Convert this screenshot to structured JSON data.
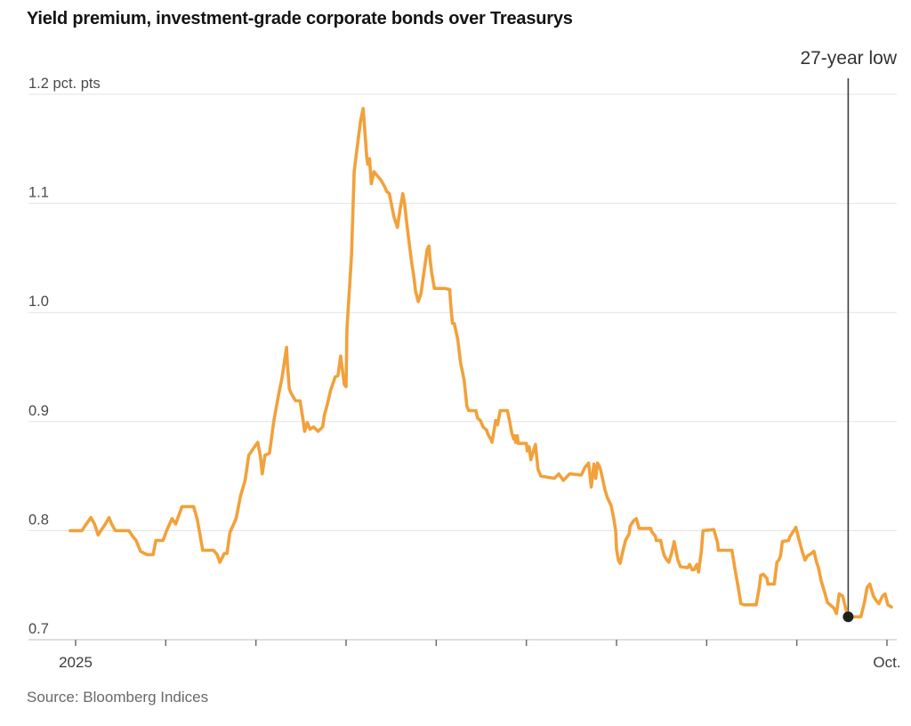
{
  "chart_data": {
    "type": "line",
    "title": "Yield premium, investment-grade corporate bonds over Treasurys",
    "source": "Source: Bloomberg Indices",
    "unit_label": "pct. pts",
    "grid": "horizontal",
    "legend": "none",
    "ylim": [
      0.7,
      1.235
    ],
    "y_ticks": [
      0.7,
      0.8,
      0.9,
      1.0,
      1.1,
      1.2
    ],
    "y_tick_labels": [
      "0.7",
      "0.8",
      "0.9",
      "1.0",
      "1.1",
      "1.2 pct. pts"
    ],
    "x_unit": "months since Jan 2025",
    "x_ticks": [
      0,
      1,
      2,
      3,
      4,
      5,
      6,
      7,
      8,
      9
    ],
    "x_tick_labels": [
      "2025",
      "",
      "",
      "",
      "",
      "",
      "",
      "",
      "",
      "Oct."
    ],
    "annotation": {
      "label": "27-year low",
      "x": 8.57,
      "value": 0.721
    },
    "series": [
      {
        "name": "Yield premium, pct. pts",
        "color": "#F2A13B",
        "x": [
          -0.06,
          0.07,
          0.11,
          0.17,
          0.21,
          0.25,
          0.28,
          0.33,
          0.37,
          0.4,
          0.44,
          0.59,
          0.64,
          0.67,
          0.72,
          0.79,
          0.86,
          0.89,
          0.97,
          1.01,
          1.07,
          1.11,
          1.14,
          1.18,
          1.31,
          1.35,
          1.41,
          1.53,
          1.57,
          1.6,
          1.65,
          1.68,
          1.71,
          1.78,
          1.83,
          1.88,
          1.92,
          1.97,
          2.02,
          2.05,
          2.07,
          2.1,
          2.15,
          2.2,
          2.25,
          2.29,
          2.34,
          2.35,
          2.37,
          2.39,
          2.44,
          2.49,
          2.52,
          2.54,
          2.57,
          2.6,
          2.64,
          2.69,
          2.74,
          2.76,
          2.79,
          2.83,
          2.88,
          2.91,
          2.94,
          2.98,
          3.0,
          3.01,
          3.06,
          3.09,
          3.13,
          3.16,
          3.19,
          3.23,
          3.24,
          3.26,
          3.28,
          3.31,
          3.34,
          3.39,
          3.43,
          3.45,
          3.48,
          3.53,
          3.57,
          3.6,
          3.63,
          3.65,
          3.68,
          3.7,
          3.73,
          3.75,
          3.77,
          3.8,
          3.83,
          3.87,
          3.9,
          3.92,
          3.93,
          3.95,
          3.98,
          4.1,
          4.15,
          4.16,
          4.17,
          4.18,
          4.2,
          4.24,
          4.27,
          4.31,
          4.34,
          4.36,
          4.44,
          4.46,
          4.49,
          4.52,
          4.56,
          4.57,
          4.61,
          4.62,
          4.66,
          4.68,
          4.71,
          4.79,
          4.81,
          4.84,
          4.86,
          4.87,
          4.88,
          4.9,
          4.91,
          5.0,
          5.01,
          5.03,
          5.05,
          5.1,
          5.13,
          5.16,
          5.31,
          5.36,
          5.41,
          5.48,
          5.61,
          5.65,
          5.69,
          5.72,
          5.75,
          5.77,
          5.79,
          5.82,
          5.85,
          5.87,
          5.9,
          5.94,
          5.95,
          5.97,
          5.99,
          6.0,
          6.02,
          6.04,
          6.07,
          6.1,
          6.14,
          6.15,
          6.19,
          6.22,
          6.25,
          6.38,
          6.39,
          6.43,
          6.44,
          6.49,
          6.51,
          6.53,
          6.56,
          6.58,
          6.61,
          6.63,
          6.64,
          6.68,
          6.71,
          6.79,
          6.81,
          6.84,
          6.86,
          6.89,
          6.91,
          6.94,
          6.96,
          7.08,
          7.12,
          7.13,
          7.28,
          7.32,
          7.35,
          7.38,
          7.42,
          7.55,
          7.58,
          7.6,
          7.63,
          7.67,
          7.68,
          7.75,
          7.78,
          7.8,
          7.82,
          7.84,
          7.91,
          7.92,
          7.99,
          8.02,
          8.06,
          8.09,
          8.12,
          8.16,
          8.19,
          8.22,
          8.24,
          8.27,
          8.31,
          8.34,
          8.41,
          8.44,
          8.47,
          8.51,
          8.54,
          8.57,
          8.71,
          8.75,
          8.78,
          8.81,
          8.85,
          8.88,
          8.91,
          8.95,
          8.98,
          9.01,
          9.05
        ],
        "y": [
          0.8,
          0.8,
          0.805,
          0.812,
          0.806,
          0.796,
          0.8,
          0.806,
          0.812,
          0.806,
          0.8,
          0.8,
          0.794,
          0.791,
          0.781,
          0.778,
          0.778,
          0.791,
          0.791,
          0.8,
          0.811,
          0.806,
          0.813,
          0.822,
          0.822,
          0.81,
          0.782,
          0.782,
          0.778,
          0.771,
          0.779,
          0.779,
          0.798,
          0.811,
          0.832,
          0.846,
          0.869,
          0.875,
          0.881,
          0.868,
          0.852,
          0.869,
          0.871,
          0.901,
          0.924,
          0.94,
          0.968,
          0.952,
          0.93,
          0.926,
          0.919,
          0.919,
          0.903,
          0.891,
          0.899,
          0.893,
          0.895,
          0.891,
          0.895,
          0.906,
          0.915,
          0.929,
          0.941,
          0.942,
          0.96,
          0.934,
          0.932,
          0.985,
          1.052,
          1.129,
          1.156,
          1.175,
          1.187,
          1.142,
          1.136,
          1.141,
          1.118,
          1.129,
          1.126,
          1.121,
          1.115,
          1.111,
          1.109,
          1.088,
          1.078,
          1.095,
          1.109,
          1.099,
          1.077,
          1.064,
          1.044,
          1.034,
          1.02,
          1.01,
          1.017,
          1.04,
          1.058,
          1.061,
          1.05,
          1.036,
          1.022,
          1.022,
          1.021,
          1.009,
          0.999,
          0.99,
          0.99,
          0.975,
          0.954,
          0.938,
          0.914,
          0.91,
          0.91,
          0.903,
          0.901,
          0.895,
          0.892,
          0.889,
          0.883,
          0.881,
          0.901,
          0.897,
          0.91,
          0.91,
          0.902,
          0.889,
          0.884,
          0.887,
          0.881,
          0.887,
          0.88,
          0.88,
          0.873,
          0.877,
          0.865,
          0.879,
          0.856,
          0.85,
          0.848,
          0.852,
          0.846,
          0.852,
          0.851,
          0.858,
          0.862,
          0.84,
          0.861,
          0.848,
          0.862,
          0.857,
          0.846,
          0.838,
          0.83,
          0.823,
          0.819,
          0.811,
          0.8,
          0.783,
          0.773,
          0.77,
          0.781,
          0.791,
          0.797,
          0.804,
          0.809,
          0.811,
          0.802,
          0.802,
          0.799,
          0.795,
          0.791,
          0.791,
          0.783,
          0.777,
          0.773,
          0.771,
          0.779,
          0.786,
          0.79,
          0.773,
          0.767,
          0.766,
          0.769,
          0.764,
          0.764,
          0.769,
          0.762,
          0.78,
          0.8,
          0.801,
          0.789,
          0.782,
          0.782,
          0.762,
          0.748,
          0.733,
          0.732,
          0.732,
          0.746,
          0.759,
          0.76,
          0.756,
          0.751,
          0.751,
          0.771,
          0.773,
          0.777,
          0.79,
          0.791,
          0.794,
          0.803,
          0.793,
          0.781,
          0.773,
          0.777,
          0.779,
          0.781,
          0.771,
          0.766,
          0.754,
          0.743,
          0.734,
          0.729,
          0.724,
          0.742,
          0.74,
          0.729,
          0.721,
          0.721,
          0.734,
          0.748,
          0.751,
          0.74,
          0.736,
          0.733,
          0.74,
          0.742,
          0.732,
          0.73
        ]
      }
    ],
    "colors": {
      "line_orange": "#F2A13B",
      "marker_black": "#1F1F1F",
      "annotation_line": "#3D3D3D",
      "gridline": "#E3E3E3",
      "baseline": "#BDBDBD",
      "tick_mark": "#6E6E6E",
      "axis_text": "#4A4A4A",
      "title_text": "#141414"
    }
  }
}
